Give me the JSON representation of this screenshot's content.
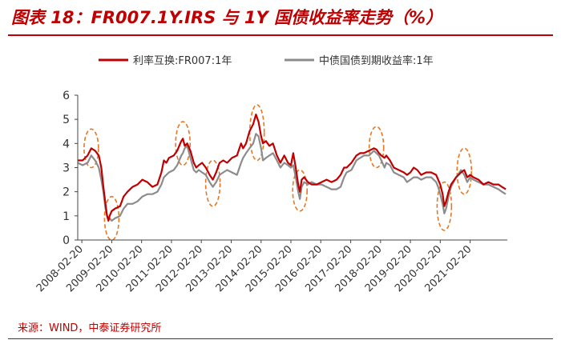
{
  "header": {
    "title": "图表 18：FR007.1Y.IRS 与 1Y 国债收益率走势（%）"
  },
  "footer": {
    "source": "来源：WIND，中泰证券研究所"
  },
  "chart_data": {
    "type": "line",
    "title": "FR007.1Y.IRS 与 1Y 国债收益率走势（%）",
    "xlabel": "",
    "ylabel": "",
    "ylim": [
      0,
      6
    ],
    "yticks": [
      0,
      1,
      2,
      3,
      4,
      5,
      6
    ],
    "x_range": [
      "2008-01-01",
      "2022-05-20"
    ],
    "x_ticks": [
      "2008-02-20",
      "2009-02-20",
      "2010-02-20",
      "2011-02-20",
      "2012-02-20",
      "2013-02-20",
      "2014-02-20",
      "2015-02-20",
      "2016-02-20",
      "2017-02-20",
      "2018-02-20",
      "2019-02-20",
      "2020-02-20",
      "2021-02-20"
    ],
    "grid": false,
    "legend_position": "top",
    "colors": {
      "irs": "#c00000",
      "bond": "#8c8c8c",
      "highlight": "#e87722"
    },
    "series": [
      {
        "name": "利率互换:FR007:1年",
        "color": "#c00000",
        "points": [
          [
            "2008-01-01",
            3.3
          ],
          [
            "2008-03-01",
            3.3
          ],
          [
            "2008-05-01",
            3.5
          ],
          [
            "2008-06-15",
            3.8
          ],
          [
            "2008-08-01",
            3.7
          ],
          [
            "2008-09-15",
            3.5
          ],
          [
            "2008-10-15",
            3.0
          ],
          [
            "2008-11-10",
            2.2
          ],
          [
            "2008-12-05",
            1.5
          ],
          [
            "2008-12-25",
            1.0
          ],
          [
            "2009-01-10",
            0.8
          ],
          [
            "2009-01-25",
            1.0
          ],
          [
            "2009-02-20",
            1.2
          ],
          [
            "2009-04-01",
            1.3
          ],
          [
            "2009-06-01",
            1.4
          ],
          [
            "2009-07-15",
            1.8
          ],
          [
            "2009-09-01",
            2.0
          ],
          [
            "2009-11-01",
            2.2
          ],
          [
            "2010-01-01",
            2.3
          ],
          [
            "2010-03-01",
            2.5
          ],
          [
            "2010-05-01",
            2.4
          ],
          [
            "2010-07-01",
            2.2
          ],
          [
            "2010-09-01",
            2.3
          ],
          [
            "2010-10-20",
            2.8
          ],
          [
            "2010-11-20",
            3.3
          ],
          [
            "2010-12-20",
            3.2
          ],
          [
            "2011-01-20",
            3.4
          ],
          [
            "2011-03-20",
            3.5
          ],
          [
            "2011-05-01",
            3.7
          ],
          [
            "2011-06-20",
            4.1
          ],
          [
            "2011-07-10",
            4.2
          ],
          [
            "2011-08-01",
            3.9
          ],
          [
            "2011-09-01",
            4.0
          ],
          [
            "2011-10-10",
            3.7
          ],
          [
            "2011-11-20",
            3.2
          ],
          [
            "2011-12-20",
            3.0
          ],
          [
            "2012-01-20",
            3.1
          ],
          [
            "2012-03-01",
            3.2
          ],
          [
            "2012-04-15",
            3.0
          ],
          [
            "2012-06-01",
            2.7
          ],
          [
            "2012-07-10",
            2.5
          ],
          [
            "2012-08-20",
            2.8
          ],
          [
            "2012-10-01",
            3.2
          ],
          [
            "2012-11-15",
            3.3
          ],
          [
            "2013-01-01",
            3.2
          ],
          [
            "2013-03-01",
            3.4
          ],
          [
            "2013-05-01",
            3.5
          ],
          [
            "2013-06-20",
            4.0
          ],
          [
            "2013-07-15",
            3.8
          ],
          [
            "2013-08-20",
            4.0
          ],
          [
            "2013-10-01",
            4.5
          ],
          [
            "2013-11-15",
            4.8
          ],
          [
            "2013-12-20",
            5.2
          ],
          [
            "2014-01-20",
            4.9
          ],
          [
            "2014-02-20",
            4.3
          ],
          [
            "2014-03-15",
            4.0
          ],
          [
            "2014-04-20",
            4.1
          ],
          [
            "2014-06-01",
            3.9
          ],
          [
            "2014-07-15",
            4.0
          ],
          [
            "2014-09-01",
            3.5
          ],
          [
            "2014-10-15",
            3.2
          ],
          [
            "2014-12-01",
            3.5
          ],
          [
            "2015-01-15",
            3.2
          ],
          [
            "2015-02-20",
            3.1
          ],
          [
            "2015-03-20",
            3.6
          ],
          [
            "2015-04-20",
            3.0
          ],
          [
            "2015-05-20",
            2.3
          ],
          [
            "2015-06-10",
            2.0
          ],
          [
            "2015-07-01",
            2.5
          ],
          [
            "2015-08-01",
            2.6
          ],
          [
            "2015-09-15",
            2.4
          ],
          [
            "2015-11-01",
            2.3
          ],
          [
            "2016-01-01",
            2.3
          ],
          [
            "2016-03-01",
            2.4
          ],
          [
            "2016-05-01",
            2.5
          ],
          [
            "2016-07-01",
            2.4
          ],
          [
            "2016-09-01",
            2.5
          ],
          [
            "2016-10-20",
            2.7
          ],
          [
            "2016-12-01",
            3.0
          ],
          [
            "2017-01-01",
            3.0
          ],
          [
            "2017-03-01",
            3.2
          ],
          [
            "2017-05-01",
            3.5
          ],
          [
            "2017-06-15",
            3.6
          ],
          [
            "2017-08-01",
            3.6
          ],
          [
            "2017-10-01",
            3.7
          ],
          [
            "2017-12-01",
            3.8
          ],
          [
            "2018-01-01",
            3.75
          ],
          [
            "2018-02-01",
            3.6
          ],
          [
            "2018-03-01",
            3.5
          ],
          [
            "2018-04-10",
            3.4
          ],
          [
            "2018-05-01",
            3.5
          ],
          [
            "2018-06-15",
            3.3
          ],
          [
            "2018-08-01",
            3.0
          ],
          [
            "2018-10-01",
            2.9
          ],
          [
            "2018-12-01",
            2.8
          ],
          [
            "2019-01-10",
            2.7
          ],
          [
            "2019-02-20",
            2.8
          ],
          [
            "2019-04-01",
            3.0
          ],
          [
            "2019-05-15",
            2.9
          ],
          [
            "2019-07-01",
            2.7
          ],
          [
            "2019-09-01",
            2.8
          ],
          [
            "2019-11-01",
            2.8
          ],
          [
            "2020-01-01",
            2.7
          ],
          [
            "2020-01-25",
            2.5
          ],
          [
            "2020-02-20",
            2.3
          ],
          [
            "2020-03-20",
            1.9
          ],
          [
            "2020-04-10",
            1.4
          ],
          [
            "2020-05-01",
            1.6
          ],
          [
            "2020-06-01",
            2.0
          ],
          [
            "2020-07-01",
            2.3
          ],
          [
            "2020-09-01",
            2.6
          ],
          [
            "2020-11-01",
            2.8
          ],
          [
            "2020-12-10",
            2.9
          ],
          [
            "2021-01-15",
            2.6
          ],
          [
            "2021-02-20",
            2.7
          ],
          [
            "2021-04-01",
            2.6
          ],
          [
            "2021-06-01",
            2.5
          ],
          [
            "2021-08-01",
            2.3
          ],
          [
            "2021-10-01",
            2.4
          ],
          [
            "2021-12-01",
            2.3
          ],
          [
            "2022-02-01",
            2.3
          ],
          [
            "2022-03-15",
            2.2
          ],
          [
            "2022-05-01",
            2.1
          ]
        ]
      },
      {
        "name": "中债国债到期收益率:1年",
        "color": "#8c8c8c",
        "points": [
          [
            "2008-01-01",
            3.2
          ],
          [
            "2008-03-01",
            3.1
          ],
          [
            "2008-05-01",
            3.2
          ],
          [
            "2008-06-15",
            3.5
          ],
          [
            "2008-08-01",
            3.3
          ],
          [
            "2008-09-15",
            3.0
          ],
          [
            "2008-10-15",
            2.5
          ],
          [
            "2008-11-10",
            2.0
          ],
          [
            "2008-12-05",
            1.3
          ],
          [
            "2008-12-25",
            1.0
          ],
          [
            "2009-01-10",
            0.9
          ],
          [
            "2009-01-25",
            0.9
          ],
          [
            "2009-02-20",
            0.8
          ],
          [
            "2009-04-01",
            0.9
          ],
          [
            "2009-06-01",
            1.0
          ],
          [
            "2009-07-15",
            1.3
          ],
          [
            "2009-09-01",
            1.5
          ],
          [
            "2009-11-01",
            1.5
          ],
          [
            "2010-01-01",
            1.6
          ],
          [
            "2010-03-01",
            1.8
          ],
          [
            "2010-05-01",
            1.9
          ],
          [
            "2010-07-01",
            1.9
          ],
          [
            "2010-09-01",
            2.0
          ],
          [
            "2010-10-20",
            2.3
          ],
          [
            "2010-11-20",
            2.6
          ],
          [
            "2010-12-20",
            2.7
          ],
          [
            "2011-01-20",
            2.8
          ],
          [
            "2011-03-20",
            2.9
          ],
          [
            "2011-05-01",
            3.1
          ],
          [
            "2011-06-20",
            3.5
          ],
          [
            "2011-07-10",
            3.6
          ],
          [
            "2011-08-01",
            3.8
          ],
          [
            "2011-09-01",
            3.9
          ],
          [
            "2011-10-10",
            3.4
          ],
          [
            "2011-11-20",
            2.9
          ],
          [
            "2011-12-20",
            2.8
          ],
          [
            "2012-01-20",
            2.9
          ],
          [
            "2012-03-01",
            2.8
          ],
          [
            "2012-04-15",
            2.7
          ],
          [
            "2012-06-01",
            2.4
          ],
          [
            "2012-07-10",
            2.2
          ],
          [
            "2012-08-20",
            2.4
          ],
          [
            "2012-10-01",
            2.7
          ],
          [
            "2012-11-15",
            2.8
          ],
          [
            "2013-01-01",
            2.9
          ],
          [
            "2013-03-01",
            2.8
          ],
          [
            "2013-05-01",
            2.7
          ],
          [
            "2013-06-20",
            3.2
          ],
          [
            "2013-07-15",
            3.4
          ],
          [
            "2013-08-20",
            3.6
          ],
          [
            "2013-10-01",
            3.8
          ],
          [
            "2013-11-15",
            4.0
          ],
          [
            "2013-12-20",
            4.4
          ],
          [
            "2014-01-20",
            4.3
          ],
          [
            "2014-02-20",
            3.8
          ],
          [
            "2014-03-15",
            3.3
          ],
          [
            "2014-04-20",
            3.4
          ],
          [
            "2014-06-01",
            3.5
          ],
          [
            "2014-07-15",
            3.6
          ],
          [
            "2014-09-01",
            3.3
          ],
          [
            "2014-10-15",
            3.0
          ],
          [
            "2014-12-01",
            3.2
          ],
          [
            "2015-01-15",
            3.1
          ],
          [
            "2015-02-20",
            3.0
          ],
          [
            "2015-03-20",
            3.1
          ],
          [
            "2015-04-20",
            2.6
          ],
          [
            "2015-05-20",
            2.0
          ],
          [
            "2015-06-10",
            1.7
          ],
          [
            "2015-07-01",
            2.2
          ],
          [
            "2015-08-01",
            2.4
          ],
          [
            "2015-09-15",
            2.3
          ],
          [
            "2015-11-01",
            2.4
          ],
          [
            "2016-01-01",
            2.3
          ],
          [
            "2016-03-01",
            2.3
          ],
          [
            "2016-05-01",
            2.2
          ],
          [
            "2016-07-01",
            2.1
          ],
          [
            "2016-09-01",
            2.1
          ],
          [
            "2016-10-20",
            2.2
          ],
          [
            "2016-12-01",
            2.6
          ],
          [
            "2017-01-01",
            2.8
          ],
          [
            "2017-03-01",
            2.9
          ],
          [
            "2017-05-01",
            3.3
          ],
          [
            "2017-06-15",
            3.4
          ],
          [
            "2017-08-01",
            3.5
          ],
          [
            "2017-10-01",
            3.5
          ],
          [
            "2017-12-01",
            3.7
          ],
          [
            "2018-01-01",
            3.6
          ],
          [
            "2018-02-01",
            3.5
          ],
          [
            "2018-03-01",
            3.3
          ],
          [
            "2018-04-10",
            3.0
          ],
          [
            "2018-05-01",
            3.2
          ],
          [
            "2018-06-15",
            3.1
          ],
          [
            "2018-08-01",
            2.8
          ],
          [
            "2018-10-01",
            2.7
          ],
          [
            "2018-12-01",
            2.6
          ],
          [
            "2019-01-10",
            2.4
          ],
          [
            "2019-02-20",
            2.5
          ],
          [
            "2019-04-01",
            2.6
          ],
          [
            "2019-05-15",
            2.6
          ],
          [
            "2019-07-01",
            2.5
          ],
          [
            "2019-09-01",
            2.6
          ],
          [
            "2019-11-01",
            2.6
          ],
          [
            "2020-01-01",
            2.4
          ],
          [
            "2020-01-25",
            2.2
          ],
          [
            "2020-02-20",
            1.9
          ],
          [
            "2020-03-20",
            1.5
          ],
          [
            "2020-04-10",
            1.1
          ],
          [
            "2020-05-01",
            1.3
          ],
          [
            "2020-06-01",
            1.8
          ],
          [
            "2020-07-01",
            2.2
          ],
          [
            "2020-09-01",
            2.6
          ],
          [
            "2020-11-01",
            2.9
          ],
          [
            "2020-12-10",
            2.7
          ],
          [
            "2021-01-15",
            2.4
          ],
          [
            "2021-02-20",
            2.6
          ],
          [
            "2021-04-01",
            2.5
          ],
          [
            "2021-06-01",
            2.4
          ],
          [
            "2021-08-01",
            2.3
          ],
          [
            "2021-10-01",
            2.3
          ],
          [
            "2021-12-01",
            2.2
          ],
          [
            "2022-02-01",
            2.1
          ],
          [
            "2022-03-15",
            2.0
          ],
          [
            "2022-05-01",
            1.9
          ]
        ]
      }
    ],
    "highlights": [
      {
        "x": "2008-06-15",
        "y_range": [
          3.0,
          4.6
        ]
      },
      {
        "x": "2009-02-20",
        "y_range": [
          0.0,
          1.8
        ]
      },
      {
        "x": "2011-07-10",
        "y_range": [
          3.1,
          4.9
        ]
      },
      {
        "x": "2012-07-10",
        "y_range": [
          1.4,
          3.3
        ]
      },
      {
        "x": "2014-01-01",
        "y_range": [
          3.3,
          5.6
        ]
      },
      {
        "x": "2015-06-10",
        "y_range": [
          1.2,
          2.9
        ]
      },
      {
        "x": "2018-01-01",
        "y_range": [
          3.0,
          4.7
        ]
      },
      {
        "x": "2020-04-10",
        "y_range": [
          0.4,
          2.4
        ]
      },
      {
        "x": "2020-12-10",
        "y_range": [
          1.9,
          3.8
        ]
      }
    ]
  }
}
